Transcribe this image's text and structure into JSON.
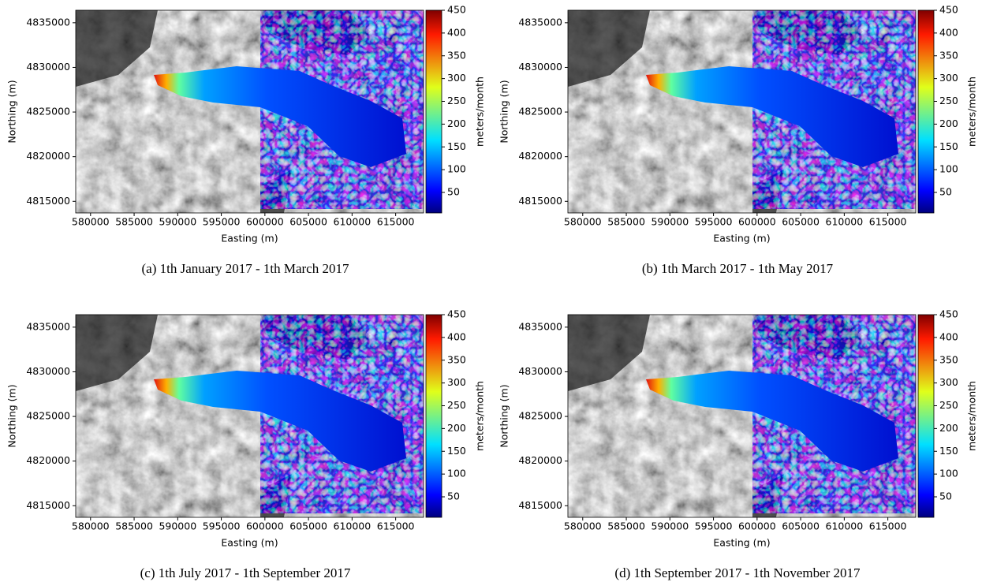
{
  "chart_data": [
    {
      "type": "quiver",
      "caption": "(a) 1th January 2017 - 1th March 2017",
      "xlabel": "Easting (m)",
      "ylabel": "Northing (m)",
      "xlim": [
        578300,
        618200
      ],
      "ylim": [
        4813700,
        4836400
      ],
      "xticks": [
        580000,
        585000,
        590000,
        595000,
        600000,
        605000,
        610000,
        615000
      ],
      "yticks": [
        4815000,
        4820000,
        4825000,
        4830000,
        4835000
      ],
      "colorbar": {
        "label": "meters/month",
        "lim": [
          5,
          450
        ],
        "ticks": [
          50,
          100,
          150,
          200,
          250,
          300,
          350,
          400,
          450
        ],
        "colormap": "jet"
      }
    },
    {
      "type": "quiver",
      "caption": "(b) 1th March 2017 - 1th May 2017",
      "xlabel": "Easting (m)",
      "ylabel": "Northing (m)",
      "xlim": [
        578300,
        618200
      ],
      "ylim": [
        4813700,
        4836400
      ],
      "xticks": [
        580000,
        585000,
        590000,
        595000,
        600000,
        605000,
        610000,
        615000
      ],
      "yticks": [
        4815000,
        4820000,
        4825000,
        4830000,
        4835000
      ],
      "colorbar": {
        "label": "meters/month",
        "lim": [
          5,
          450
        ],
        "ticks": [
          50,
          100,
          150,
          200,
          250,
          300,
          350,
          400,
          450
        ],
        "colormap": "jet"
      }
    },
    {
      "type": "quiver",
      "caption": "(c) 1th July 2017 - 1th September 2017",
      "xlabel": "Easting (m)",
      "ylabel": "Northing (m)",
      "xlim": [
        578300,
        618200
      ],
      "ylim": [
        4813700,
        4836400
      ],
      "xticks": [
        580000,
        585000,
        590000,
        595000,
        600000,
        605000,
        610000,
        615000
      ],
      "yticks": [
        4815000,
        4820000,
        4825000,
        4830000,
        4835000
      ],
      "colorbar": {
        "label": "meters/month",
        "lim": [
          5,
          450
        ],
        "ticks": [
          50,
          100,
          150,
          200,
          250,
          300,
          350,
          400,
          450
        ],
        "colormap": "jet"
      }
    },
    {
      "type": "quiver",
      "caption": "(d) 1th September 2017 - 1th November 2017",
      "xlabel": "Easting (m)",
      "ylabel": "Northing (m)",
      "xlim": [
        578300,
        618200
      ],
      "ylim": [
        4813700,
        4836400
      ],
      "xticks": [
        580000,
        585000,
        590000,
        595000,
        600000,
        605000,
        610000,
        615000
      ],
      "yticks": [
        4815000,
        4820000,
        4825000,
        4830000,
        4835000
      ],
      "colorbar": {
        "label": "meters/month",
        "lim": [
          5,
          450
        ],
        "ticks": [
          50,
          100,
          150,
          200,
          250,
          300,
          350,
          400,
          450
        ],
        "colormap": "jet"
      }
    }
  ]
}
